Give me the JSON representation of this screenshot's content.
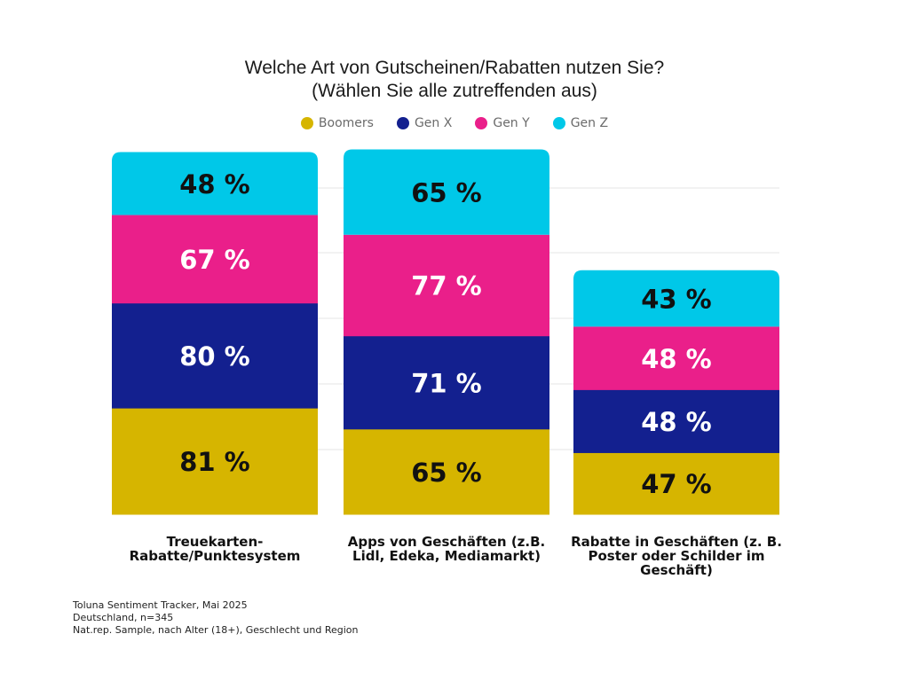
{
  "title": {
    "line1": "Welche Art von Gutscheinen/Rabatten nutzen Sie?",
    "line2": "(Wählen Sie alle zutreffenden aus)"
  },
  "colors": {
    "Boomers": "#d6b500",
    "Gen X": "#13208f",
    "Gen Y": "#ea1f8a",
    "Gen Z": "#00c8e8",
    "grid": "#e6e6e6"
  },
  "legend": [
    "Boomers",
    "Gen X",
    "Gen Y",
    "Gen Z"
  ],
  "chart_data": {
    "type": "bar",
    "stacked": true,
    "categories": [
      "Treuekarten-Rabatte/Punktesystem",
      "Apps von Geschäften (z.B. Lidl, Edeka, Mediamarkt)",
      "Rabatte in Geschäften (z. B. Poster oder Schilder im Geschäft)"
    ],
    "category_lines": [
      [
        "Treuekarten-",
        "Rabatte/Punktesystem"
      ],
      [
        "Apps von Geschäften (z.B.",
        "Lidl, Edeka, Mediamarkt)"
      ],
      [
        "Rabatte in Geschäften (z. B.",
        "Poster oder Schilder im",
        "Geschäft)"
      ]
    ],
    "series": [
      {
        "name": "Boomers",
        "values": [
          81,
          65,
          47
        ],
        "labels": [
          "81 %",
          "65 %",
          "47 %"
        ]
      },
      {
        "name": "Gen X",
        "values": [
          80,
          71,
          48
        ],
        "labels": [
          "80 %",
          "71 %",
          "48 %"
        ]
      },
      {
        "name": "Gen Y",
        "values": [
          67,
          77,
          48
        ],
        "labels": [
          "67 %",
          "77 %",
          "48 %"
        ]
      },
      {
        "name": "Gen Z",
        "values": [
          48,
          65,
          43
        ],
        "labels": [
          "48 %",
          "65 %",
          "43 %"
        ]
      }
    ],
    "grid": true,
    "legend_position": "top-center",
    "xlabel": "",
    "ylabel": ""
  },
  "footer": [
    "Toluna Sentiment Tracker,  Mai 2025",
    "Deutschland, n=345",
    "Nat.rep. Sample, nach Alter (18+), Geschlecht und Region"
  ]
}
